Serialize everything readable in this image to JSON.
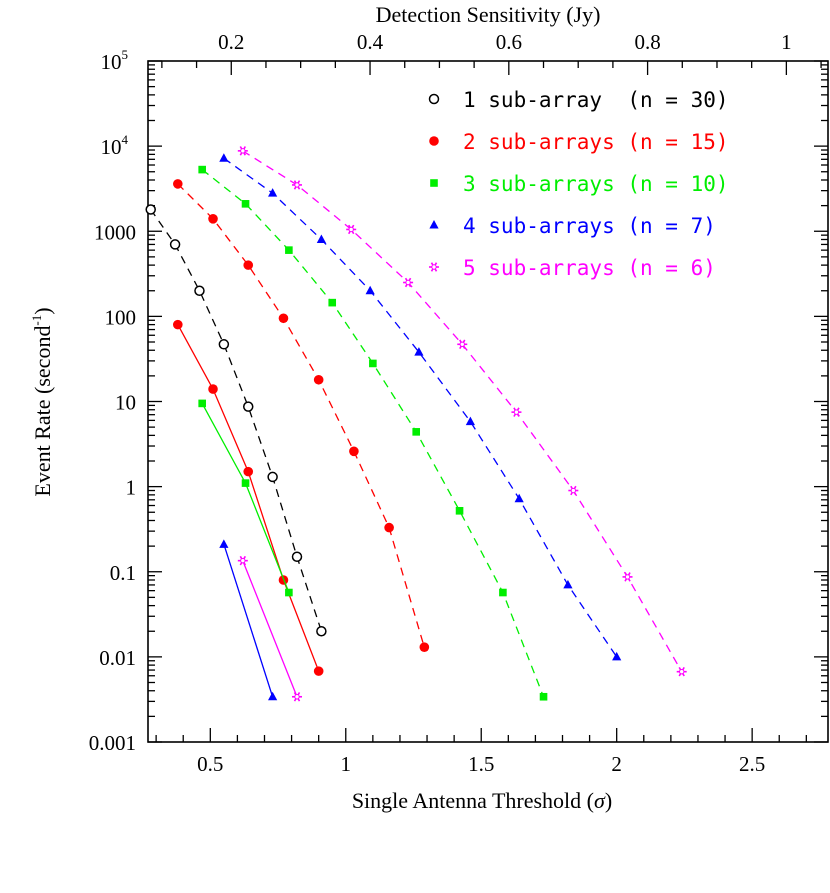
{
  "chart_data": {
    "type": "scatter",
    "title": "",
    "xlabel": "Single Antenna Threshold (σ)",
    "xlabel_parts": [
      "Single Antenna Threshold (",
      "σ",
      ")"
    ],
    "x2label": "Detection Sensitivity (Jy)",
    "ylabel": "Event Rate (second⁻¹)",
    "ylabel_parts": [
      "Event Rate (second",
      "-1",
      ")"
    ],
    "xlim": [
      0.27,
      2.78
    ],
    "ylim": [
      0.001,
      100000
    ],
    "yscale": "log",
    "x2lim": [
      0.08,
      1.06
    ],
    "x_ticks": [
      0.5,
      1,
      1.5,
      2,
      2.5
    ],
    "x_tick_labels": [
      "0.5",
      "1",
      "1.5",
      "2",
      "2.5"
    ],
    "x2_ticks": [
      0.2,
      0.4,
      0.6,
      0.8,
      1
    ],
    "x2_tick_labels": [
      "0.2",
      "0.4",
      "0.6",
      "0.8",
      "1"
    ],
    "y_ticks": [
      0.001,
      0.01,
      0.1,
      1,
      10,
      100,
      1000,
      10000,
      100000
    ],
    "y_tick_labels": [
      {
        "base": "0.001",
        "sup": ""
      },
      {
        "base": "0.01",
        "sup": ""
      },
      {
        "base": "0.1",
        "sup": ""
      },
      {
        "base": "1",
        "sup": ""
      },
      {
        "base": "10",
        "sup": ""
      },
      {
        "base": "100",
        "sup": ""
      },
      {
        "base": "1000",
        "sup": ""
      },
      {
        "base": "10",
        "sup": "4"
      },
      {
        "base": "10",
        "sup": "5"
      }
    ],
    "grid": false,
    "legend_position": "top-right",
    "legend": [
      "1 sub-array  (n = 30)",
      "2 sub-arrays (n = 15)",
      "3 sub-arrays (n = 10)",
      "4 sub-arrays (n = 7)",
      "5 sub-arrays (n = 6)"
    ],
    "series": [
      {
        "name": "1 sub-array (n = 30)",
        "color": "#000000",
        "marker": "open-circle",
        "dashed": {
          "x": [
            0.28,
            0.37,
            0.46,
            0.55,
            0.64,
            0.73,
            0.82,
            0.91
          ],
          "y": [
            1800,
            700,
            200,
            47,
            8.7,
            1.3,
            0.15,
            0.02
          ]
        },
        "solid": null
      },
      {
        "name": "2 sub-arrays (n = 15)",
        "color": "#ff0000",
        "marker": "filled-circle",
        "dashed": {
          "x": [
            0.38,
            0.51,
            0.64,
            0.77,
            0.9,
            1.03,
            1.16,
            1.29
          ],
          "y": [
            3600,
            1400,
            400,
            95,
            18,
            2.6,
            0.33,
            0.013
          ]
        },
        "solid": {
          "x": [
            0.38,
            0.51,
            0.64,
            0.77,
            0.9
          ],
          "y": [
            80,
            14,
            1.5,
            0.08,
            0.0068
          ]
        }
      },
      {
        "name": "3 sub-arrays (n = 10)",
        "color": "#00ee00",
        "marker": "filled-square",
        "dashed": {
          "x": [
            0.47,
            0.63,
            0.79,
            0.95,
            1.1,
            1.26,
            1.42,
            1.58,
            1.73
          ],
          "y": [
            5300,
            2100,
            600,
            145,
            28,
            4.4,
            0.52,
            0.057,
            0.0034
          ]
        },
        "solid": {
          "x": [
            0.47,
            0.63,
            0.79
          ],
          "y": [
            9.5,
            1.1,
            0.057
          ]
        }
      },
      {
        "name": "4 sub-arrays (n = 7)",
        "color": "#0000ff",
        "marker": "filled-triangle",
        "dashed": {
          "x": [
            0.55,
            0.73,
            0.91,
            1.09,
            1.27,
            1.46,
            1.64,
            1.82,
            2.0
          ],
          "y": [
            7200,
            2800,
            800,
            200,
            38,
            5.8,
            0.72,
            0.07,
            0.01
          ]
        },
        "solid": {
          "x": [
            0.55,
            0.73
          ],
          "y": [
            0.21,
            0.0034
          ]
        }
      },
      {
        "name": "5 sub-arrays (n = 6)",
        "color": "#ff00ff",
        "marker": "star",
        "dashed": {
          "x": [
            0.62,
            0.82,
            1.02,
            1.23,
            1.43,
            1.63,
            1.84,
            2.04,
            2.24
          ],
          "y": [
            8800,
            3500,
            1050,
            250,
            47,
            7.5,
            0.9,
            0.087,
            0.0067
          ]
        },
        "solid": {
          "x": [
            0.62,
            0.82
          ],
          "y": [
            0.135,
            0.0034
          ]
        }
      }
    ]
  }
}
